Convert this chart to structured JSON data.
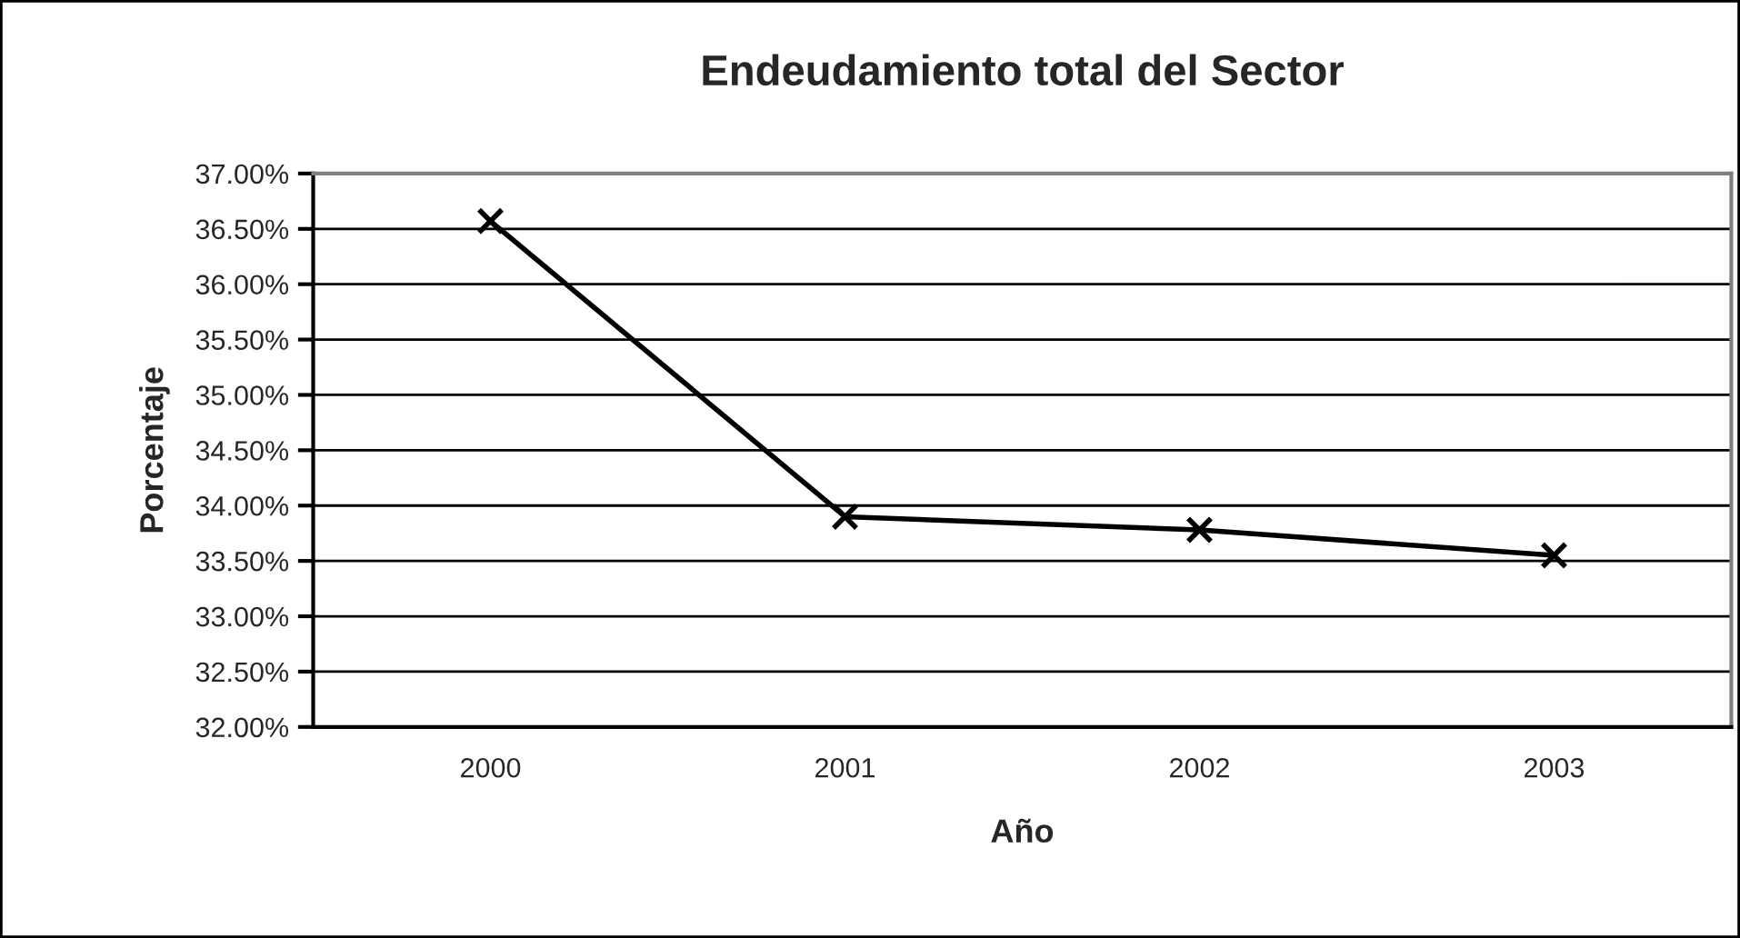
{
  "chart_data": {
    "type": "line",
    "title": "Endeudamiento total del Sector",
    "xlabel": "Año",
    "ylabel": "Porcentaje",
    "categories": [
      "2000",
      "2001",
      "2002",
      "2003"
    ],
    "series": [
      {
        "color": "#000000",
        "values": [
          36.57,
          33.9,
          33.78,
          33.55
        ]
      }
    ],
    "ylim": [
      32,
      37
    ],
    "yticks": [
      {
        "value": 32,
        "label": "32.00%"
      },
      {
        "value": 32.5,
        "label": "32.50%"
      },
      {
        "value": 33,
        "label": "33.00%"
      },
      {
        "value": 33.5,
        "label": "33.50%"
      },
      {
        "value": 34,
        "label": "34.00%"
      },
      {
        "value": 34.5,
        "label": "34.50%"
      },
      {
        "value": 35,
        "label": "35.00%"
      },
      {
        "value": 35.5,
        "label": "35.50%"
      },
      {
        "value": 36,
        "label": "36.00%"
      },
      {
        "value": 36.5,
        "label": "36.50%"
      },
      {
        "value": 37,
        "label": "37.00%"
      }
    ],
    "grid": "y",
    "marker": "cross",
    "line_style": "solid"
  }
}
